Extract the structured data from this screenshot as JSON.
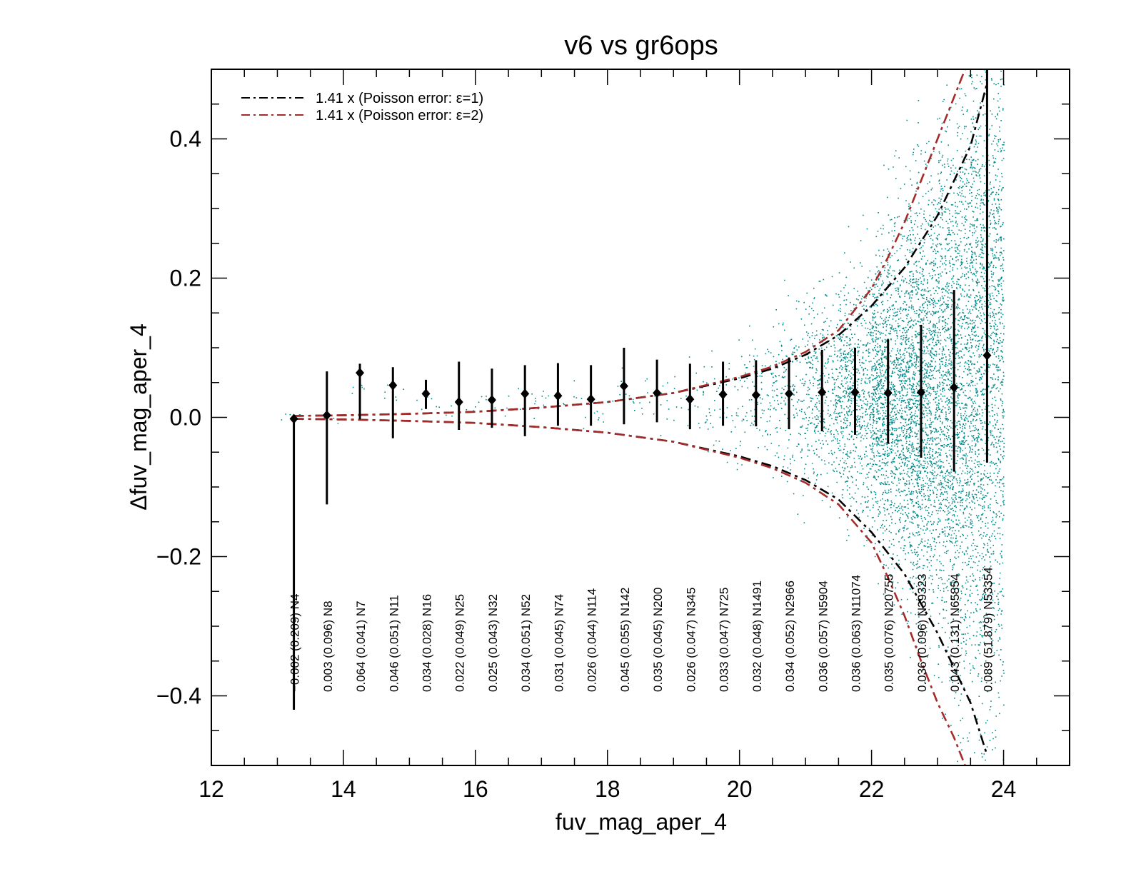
{
  "chart_data": {
    "type": "scatter",
    "title": "v6 vs gr6ops",
    "xlabel": "fuv_mag_aper_4",
    "ylabel": "Δfuv_mag_aper_4",
    "xlim": [
      12,
      25
    ],
    "ylim": [
      -0.5,
      0.5
    ],
    "xticks": [
      12,
      14,
      16,
      18,
      20,
      22,
      24
    ],
    "xtick_labels": [
      "12",
      "14",
      "16",
      "18",
      "20",
      "22",
      "24"
    ],
    "yticks": [
      -0.4,
      -0.2,
      0.0,
      0.2,
      0.4
    ],
    "ytick_labels": [
      "−0.4",
      "−0.2",
      "0.0",
      "0.2",
      "0.4"
    ],
    "grid": false,
    "legend_position": "top-left",
    "colors": {
      "scatter": "#008b8b",
      "poisson_eps1": "#000000",
      "poisson_eps2": "#a52a2a",
      "binned": "#000000"
    },
    "legend": [
      {
        "label": "1.41 x (Poisson error: ε=1)",
        "color": "#000000",
        "style": "dash-dot"
      },
      {
        "label": "1.41 x (Poisson error: ε=2)",
        "color": "#a52a2a",
        "style": "dash-dot"
      }
    ],
    "binned": {
      "x": [
        13.25,
        13.75,
        14.25,
        14.75,
        15.25,
        15.75,
        16.25,
        16.75,
        17.25,
        17.75,
        18.25,
        18.75,
        19.25,
        19.75,
        20.25,
        20.75,
        21.25,
        21.75,
        22.25,
        22.75,
        23.25,
        23.75
      ],
      "mean": [
        -0.002,
        0.003,
        0.064,
        0.046,
        0.034,
        0.022,
        0.025,
        0.034,
        0.031,
        0.026,
        0.045,
        0.035,
        0.026,
        0.033,
        0.032,
        0.034,
        0.036,
        0.036,
        0.035,
        0.036,
        0.043,
        0.089
      ],
      "sigma": [
        0.209,
        0.096,
        0.041,
        0.051,
        0.028,
        0.049,
        0.043,
        0.051,
        0.045,
        0.044,
        0.055,
        0.045,
        0.047,
        0.047,
        0.048,
        0.052,
        0.057,
        0.063,
        0.076,
        0.096,
        0.131,
        51.879
      ],
      "n": [
        4,
        8,
        7,
        11,
        16,
        25,
        32,
        52,
        74,
        114,
        142,
        200,
        345,
        725,
        1491,
        2966,
        5904,
        11074,
        20755,
        39323,
        65854,
        53354
      ],
      "labels": [
        "−0.002 (0.209)  N4",
        "0.003 (0.096)  N8",
        "0.064 (0.041)  N7",
        "0.046 (0.051)  N11",
        "0.034 (0.028)  N16",
        "0.022 (0.049)  N25",
        "0.025 (0.043)  N32",
        "0.034 (0.051)  N52",
        "0.031 (0.045)  N74",
        "0.026 (0.044)  N114",
        "0.045 (0.055)  N142",
        "0.035 (0.045)  N200",
        "0.026 (0.047)  N345",
        "0.033 (0.047)  N725",
        "0.032 (0.048)  N1491",
        "0.034 (0.052)  N2966",
        "0.036 (0.057)  N5904",
        "0.036 (0.063)  N11074",
        "0.035 (0.076)  N20755",
        "0.036 (0.096)  N39323",
        "0.043 (0.131)  N65854",
        "0.089 (51.879)  N53354"
      ]
    },
    "error_bar_bounds": {
      "lower": [
        -0.42,
        -0.125,
        -0.003,
        -0.03,
        0.012,
        -0.018,
        -0.015,
        -0.027,
        -0.012,
        -0.012,
        -0.01,
        -0.007,
        -0.017,
        -0.012,
        -0.013,
        -0.017,
        -0.02,
        -0.025,
        -0.038,
        -0.058,
        -0.078,
        -0.065
      ],
      "upper": [
        -0.002,
        0.066,
        0.077,
        0.072,
        0.054,
        0.08,
        0.07,
        0.075,
        0.078,
        0.075,
        0.1,
        0.083,
        0.077,
        0.08,
        0.082,
        0.086,
        0.097,
        0.1,
        0.112,
        0.133,
        0.183,
        0.5
      ]
    },
    "poisson_curves": [
      {
        "eps": 1,
        "x": [
          13.25,
          14,
          15,
          16,
          17,
          18,
          19,
          20,
          20.5,
          21,
          21.5,
          22,
          22.5,
          23,
          23.5,
          23.75
        ],
        "upper": [
          0.002,
          0.003,
          0.005,
          0.008,
          0.014,
          0.022,
          0.035,
          0.056,
          0.07,
          0.09,
          0.118,
          0.16,
          0.215,
          0.29,
          0.39,
          0.48
        ],
        "lower": [
          -0.002,
          -0.003,
          -0.005,
          -0.008,
          -0.014,
          -0.022,
          -0.035,
          -0.056,
          -0.07,
          -0.09,
          -0.118,
          -0.165,
          -0.225,
          -0.31,
          -0.41,
          -0.485
        ]
      },
      {
        "eps": 2,
        "x": [
          13.25,
          14,
          15,
          16,
          17,
          18,
          19,
          20,
          20.5,
          21,
          21.5,
          22,
          22.25,
          22.5,
          22.75,
          23,
          23.25,
          23.5
        ],
        "upper": [
          0.002,
          0.003,
          0.005,
          0.008,
          0.014,
          0.022,
          0.035,
          0.058,
          0.073,
          0.094,
          0.125,
          0.185,
          0.23,
          0.28,
          0.34,
          0.4,
          0.46,
          0.52
        ],
        "lower": [
          -0.002,
          -0.003,
          -0.005,
          -0.008,
          -0.014,
          -0.022,
          -0.035,
          -0.058,
          -0.073,
          -0.094,
          -0.125,
          -0.18,
          -0.23,
          -0.285,
          -0.35,
          -0.41,
          -0.46,
          -0.52
        ]
      }
    ]
  }
}
